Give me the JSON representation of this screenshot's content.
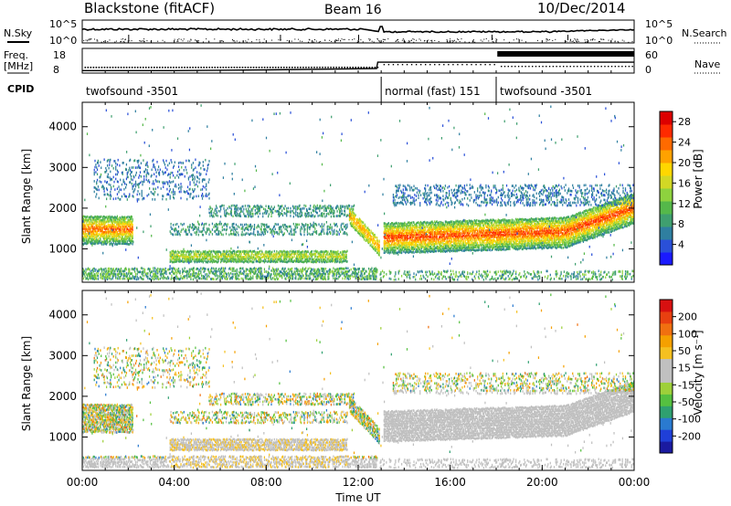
{
  "header": {
    "radar": "Blackstone",
    "mode": "(fitACF)",
    "beam": "Beam 16",
    "date": "10/Dec/2014"
  },
  "panel_labels": {
    "nsky": "N.Sky",
    "nsky_ticks": [
      "10^5",
      "10^0"
    ],
    "nsearch": "N.Search",
    "nsearch_ticks": [
      "10^5",
      "10^0"
    ],
    "freq": "Freq.",
    "freq_unit": "[MHz]",
    "freq_ticks": [
      "18",
      "8"
    ],
    "nave": "Nave",
    "nave_ticks": [
      "60",
      "0"
    ],
    "cpid": "CPID"
  },
  "cpid_segments": [
    {
      "label": "twofsound -3501",
      "start_h": 0,
      "end_h": 13
    },
    {
      "label": "normal (fast) 151",
      "start_h": 13,
      "end_h": 18
    },
    {
      "label": "twofsound -3501",
      "start_h": 18,
      "end_h": 24
    }
  ],
  "chart_data": [
    {
      "type": "line",
      "name": "frequency",
      "x_unit": "hours UT",
      "x": [
        0,
        4,
        8,
        12.8,
        12.85,
        18,
        24
      ],
      "values": [
        9.0,
        9.0,
        9.3,
        9.8,
        12.4,
        12.4,
        12.4
      ],
      "ylim": [
        8,
        18
      ]
    },
    {
      "type": "heatmap",
      "title": "Power",
      "ylabel": "Slant Range [km]",
      "xlabel": "Time UT",
      "x_ticks": [
        "00:00",
        "04:00",
        "08:00",
        "12:00",
        "16:00",
        "20:00",
        "00:00"
      ],
      "xlim": [
        0,
        24
      ],
      "y_ticks": [
        1000,
        2000,
        3000,
        4000
      ],
      "ylim": [
        180,
        4600
      ],
      "colorbar": {
        "label": "Power [dB]",
        "ticks": [
          4,
          8,
          12,
          16,
          20,
          24,
          28
        ],
        "range": [
          0,
          30
        ],
        "colors": [
          "#1a1aff",
          "#2a50d8",
          "#2f7fa0",
          "#3f9f6f",
          "#55b84a",
          "#8ed23e",
          "#d2d825",
          "#ffd700",
          "#ffa200",
          "#ff6a00",
          "#ff2a00",
          "#dd0000"
        ]
      }
    },
    {
      "type": "heatmap",
      "title": "Velocity",
      "ylabel": "Slant Range [km]",
      "xlabel": "Time UT",
      "x_ticks": [
        "00:00",
        "04:00",
        "08:00",
        "12:00",
        "16:00",
        "20:00",
        "00:00"
      ],
      "xlim": [
        0,
        24
      ],
      "y_ticks": [
        1000,
        2000,
        3000,
        4000
      ],
      "ylim": [
        180,
        4600
      ],
      "colorbar": {
        "label": "Velocity [m s⁻¹]",
        "ticks": [
          "200",
          "100",
          "50",
          "15",
          "-15",
          "-50",
          "-100",
          "-200"
        ],
        "range": [
          -250,
          250
        ],
        "colors": [
          "#1a1aa0",
          "#1f3fd8",
          "#2a7ad0",
          "#2fa070",
          "#55c040",
          "#9ed03a",
          "#c0c0c0",
          "#c0c0c0",
          "#f5c020",
          "#f5a000",
          "#f07010",
          "#e84010",
          "#d81010"
        ]
      }
    }
  ],
  "x_axis_label": "Time UT"
}
